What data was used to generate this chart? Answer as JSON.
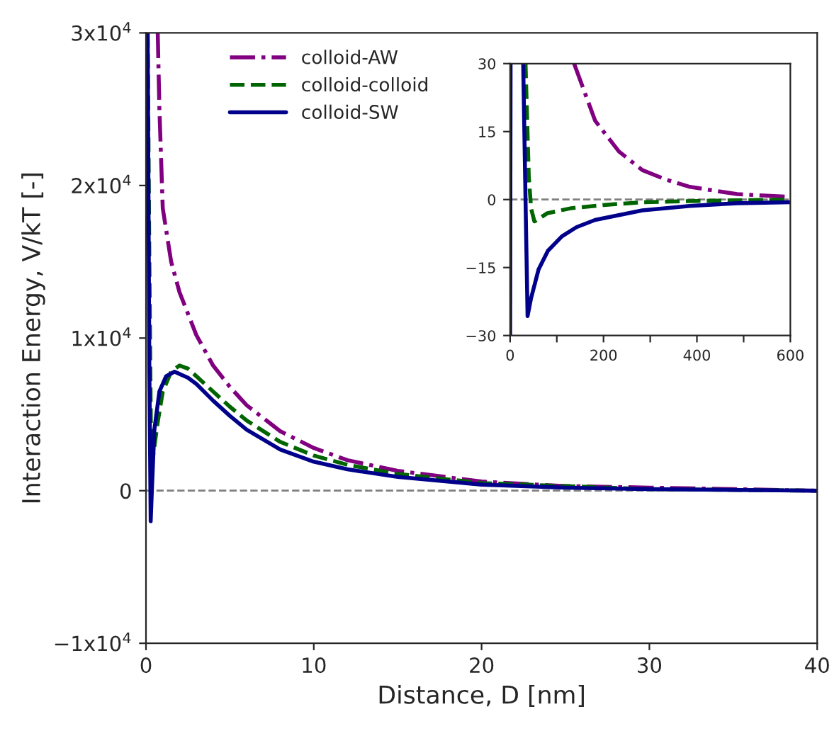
{
  "chart_data": [
    {
      "type": "line",
      "xlabel": "Distance, D [nm]",
      "ylabel": "Interaction Energy, V/kT [-]",
      "legend": "top left",
      "grid": false,
      "xlim": [
        0,
        40
      ],
      "xticks": [
        0,
        10,
        20,
        30,
        40
      ],
      "ylim": [
        -10000,
        30000
      ],
      "yticks": [
        {
          "value": -10000,
          "label": "−1x10$^{4}$"
        },
        {
          "value": 0,
          "label": "0"
        },
        {
          "value": 10000,
          "label": "1x10$^{4}$"
        },
        {
          "value": 20000,
          "label": "2x10$^{4}$"
        },
        {
          "value": 30000,
          "label": "3x10$^{4}$"
        }
      ],
      "ref_lines": [
        {
          "axis": "y",
          "value": 0,
          "color": "#808080",
          "line_style": "dashed"
        }
      ],
      "series": [
        {
          "name": "colloid-AW",
          "color": "#800080",
          "line_style": "dashdot",
          "x": [
            0.7,
            0.8,
            1.0,
            1.5,
            2,
            3,
            4,
            5,
            6,
            8,
            10,
            12,
            15,
            20,
            25,
            30,
            35,
            40
          ],
          "values": [
            30000,
            25000,
            18500,
            15000,
            13000,
            10200,
            8200,
            6800,
            5600,
            3900,
            2800,
            2000,
            1300,
            600,
            300,
            200,
            100,
            0
          ]
        },
        {
          "name": "colloid-colloid",
          "color": "#006400",
          "line_style": "dashed",
          "x": [
            0.1,
            0.2,
            0.3,
            0.4,
            0.7,
            1.0,
            1.5,
            2.0,
            2.5,
            3,
            4,
            5,
            6,
            8,
            10,
            12,
            15,
            20,
            25,
            30,
            40
          ],
          "values": [
            30000,
            15000,
            3000,
            2100,
            4500,
            6500,
            7800,
            8200,
            8000,
            7500,
            6500,
            5500,
            4600,
            3200,
            2300,
            1700,
            1100,
            500,
            300,
            100,
            0
          ]
        },
        {
          "name": "colloid-SW",
          "color": "#00008b",
          "line_style": "solid",
          "x": [
            0.1,
            0.2,
            0.28,
            0.35,
            0.5,
            0.8,
            1.2,
            1.7,
            2.5,
            3,
            4,
            5,
            6,
            8,
            10,
            12,
            15,
            20,
            25,
            30,
            40
          ],
          "values": [
            30000,
            8000,
            -2000,
            0,
            4000,
            6500,
            7500,
            7800,
            7400,
            7000,
            5900,
            4900,
            4000,
            2700,
            1900,
            1400,
            900,
            400,
            200,
            100,
            0
          ]
        }
      ]
    },
    {
      "type": "line",
      "grid": false,
      "xlim": [
        0,
        600
      ],
      "xticks": [
        0,
        {
          "value": 100,
          "label": null
        },
        200,
        {
          "value": 300,
          "label": null
        },
        400,
        {
          "value": 500,
          "label": null
        },
        600
      ],
      "ylim": [
        -30,
        30
      ],
      "yticks": [
        {
          "value": -30,
          "label": "−30"
        },
        {
          "value": -15,
          "label": "−15"
        },
        0,
        15,
        30
      ],
      "ref_lines": [
        {
          "axis": "y",
          "value": 0,
          "color": "#808080",
          "line_style": "dashed"
        }
      ],
      "series": [
        {
          "color": "#800080",
          "line_style": "dashdot",
          "x": [
            137,
            182,
            233,
            283,
            334,
            385,
            486,
            600
          ],
          "values": [
            30,
            17.4,
            10.6,
            6.5,
            4.4,
            2.8,
            1.2,
            0.6
          ]
        },
        {
          "color": "#006400",
          "line_style": "dashed",
          "x": [
            33,
            40,
            45,
            52,
            56,
            80,
            131,
            200,
            283,
            400,
            600
          ],
          "values": [
            30,
            5,
            -2,
            -4.8,
            -4.6,
            -3,
            -1.9,
            -1.2,
            -0.6,
            -0.3,
            0
          ]
        },
        {
          "color": "#00008b",
          "line_style": "solid",
          "x": [
            0,
            1,
            15,
            28,
            33,
            37.4,
            45,
            61,
            81,
            111,
            142,
            182,
            283,
            385,
            486,
            600
          ],
          "values": [
            -30,
            30,
            null,
            30,
            0,
            -25.7,
            -21.7,
            -15.4,
            -11.3,
            -8.1,
            -6.1,
            -4.5,
            -2.4,
            -1.4,
            -0.8,
            -0.6
          ]
        }
      ]
    }
  ]
}
